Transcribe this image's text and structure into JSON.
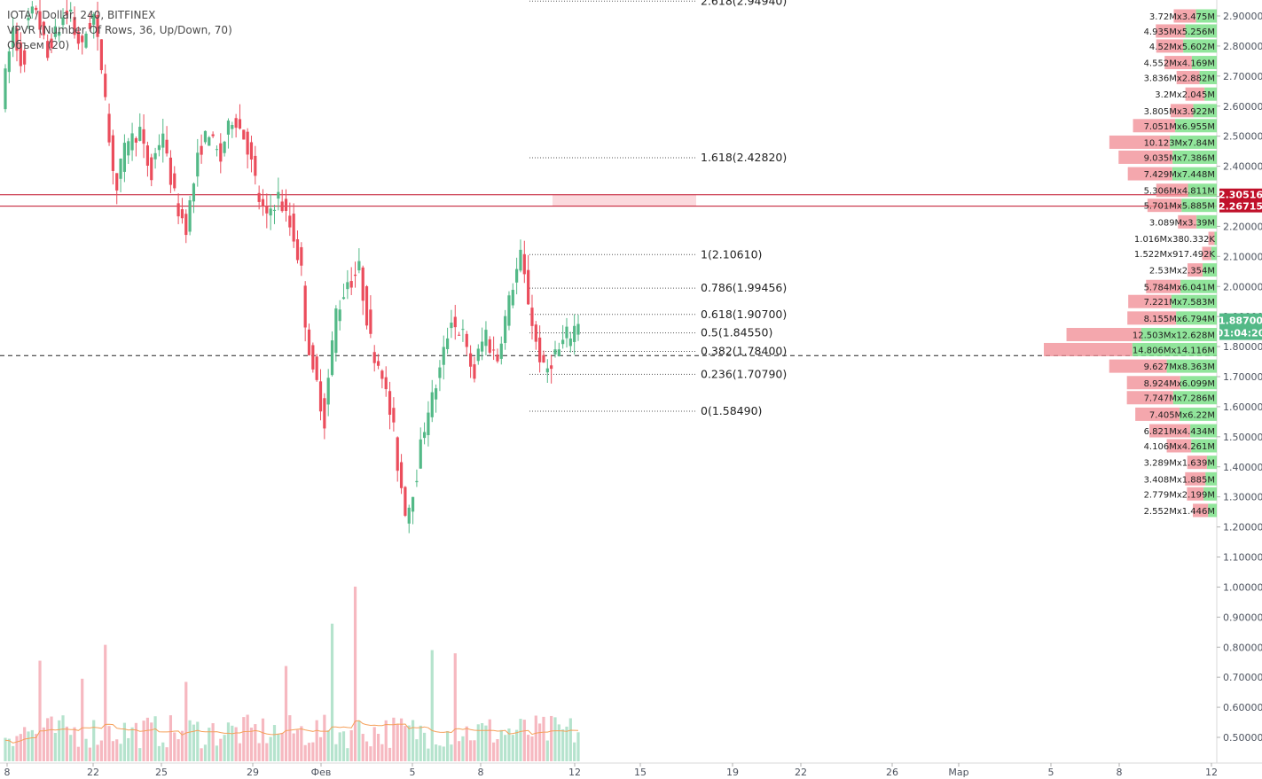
{
  "legend": {
    "symbol_line": "IOTA / Dollar, 240, BITFINEX",
    "vpvr_line": "VPVR (Number Of Rows, 36, Up/Down, 70)",
    "volume_line": "Объем (20)"
  },
  "colors": {
    "up": "#53b987",
    "down": "#eb4d5c",
    "up_volume": "#b5e3cd",
    "down_volume": "#f6b8c0",
    "volume_ma": "#f5a05a",
    "vp_up": "#7ee08a",
    "vp_down": "#f08a92",
    "level_line": "#c0102a"
  },
  "chart_data": {
    "type": "candlestick",
    "y_axis": {
      "ticks": [
        "2.90000",
        "2.80000",
        "2.70000",
        "2.60000",
        "2.50000",
        "2.40000",
        "2.30000",
        "2.20000",
        "2.10000",
        "2.00000",
        "1.90000",
        "1.80000",
        "1.70000",
        "1.60000",
        "1.50000",
        "1.40000",
        "1.30000",
        "1.20000",
        "1.10000",
        "1.00000",
        "0.90000",
        "0.80000",
        "0.70000",
        "0.60000",
        "0.50000"
      ],
      "range": [
        0.45,
        2.95
      ]
    },
    "x_axis": {
      "ticks": [
        "8",
        "22",
        "25",
        "29",
        "Фев",
        "5",
        "8",
        "12",
        "15",
        "19",
        "22",
        "26",
        "Мар",
        "5",
        "8",
        "12"
      ]
    },
    "fibonacci": [
      {
        "label": "2.618(2.94940)",
        "value": 2.9494
      },
      {
        "label": "1.618(2.42820)",
        "value": 2.4282
      },
      {
        "label": "1(2.10610)",
        "value": 2.1061
      },
      {
        "label": "0.786(1.99456)",
        "value": 1.99456
      },
      {
        "label": "0.618(1.90700)",
        "value": 1.907
      },
      {
        "label": "0.5(1.84550)",
        "value": 1.8455
      },
      {
        "label": "0.382(1.78400)",
        "value": 1.784
      },
      {
        "label": "0.236(1.70790)",
        "value": 1.7079
      },
      {
        "label": "0(1.58490)",
        "value": 1.5849
      }
    ],
    "horizontal_levels": [
      {
        "value": 2.30516,
        "label": "2.30516"
      },
      {
        "value": 2.26715,
        "label": "2.26715"
      }
    ],
    "last_price": {
      "value": 1.887,
      "label": "1.88700",
      "countdown": "01:04:20"
    },
    "dashed_level": 1.77,
    "volume_profile": [
      {
        "price": 2.9,
        "label": "3.72Mx3.475M",
        "up": 3.475,
        "down": 3.72
      },
      {
        "price": 2.85,
        "label": "4.935Mx5.256M",
        "up": 5.256,
        "down": 4.935
      },
      {
        "price": 2.8,
        "label": "4.52Mx5.602M",
        "up": 5.602,
        "down": 4.52
      },
      {
        "price": 2.745,
        "label": "4.552Mx4.169M",
        "up": 4.169,
        "down": 4.552
      },
      {
        "price": 2.695,
        "label": "3.836Mx2.882M",
        "up": 2.882,
        "down": 3.836
      },
      {
        "price": 2.64,
        "label": "3.2Mx2.045M",
        "up": 2.045,
        "down": 3.2
      },
      {
        "price": 2.585,
        "label": "3.805Mx3.922M",
        "up": 3.922,
        "down": 3.805
      },
      {
        "price": 2.535,
        "label": "7.051Mx6.955M",
        "up": 6.955,
        "down": 7.051
      },
      {
        "price": 2.48,
        "label": "10.123Mx7.84M",
        "up": 7.84,
        "down": 10.123
      },
      {
        "price": 2.43,
        "label": "9.035Mx7.386M",
        "up": 7.386,
        "down": 9.035
      },
      {
        "price": 2.375,
        "label": "7.429Mx7.448M",
        "up": 7.448,
        "down": 7.429
      },
      {
        "price": 2.32,
        "label": "5.306Mx4.811M",
        "up": 4.811,
        "down": 5.306
      },
      {
        "price": 2.27,
        "label": "5.701Mx5.885M",
        "up": 5.885,
        "down": 5.701
      },
      {
        "price": 2.215,
        "label": "3.089Mx3.39M",
        "up": 3.39,
        "down": 3.089
      },
      {
        "price": 2.16,
        "label": "1.016Mx380.332K",
        "up": 0.38,
        "down": 1.016
      },
      {
        "price": 2.11,
        "label": "1.522Mx917.492K",
        "up": 0.917,
        "down": 1.522
      },
      {
        "price": 2.055,
        "label": "2.53Mx2.354M",
        "up": 2.354,
        "down": 2.53
      },
      {
        "price": 2.0,
        "label": "5.784Mx6.041M",
        "up": 6.041,
        "down": 5.784
      },
      {
        "price": 1.95,
        "label": "7.221Mx7.583M",
        "up": 7.583,
        "down": 7.221
      },
      {
        "price": 1.895,
        "label": "8.155Mx6.794M",
        "up": 6.794,
        "down": 8.155
      },
      {
        "price": 1.84,
        "label": "12.503Mx12.628M",
        "up": 12.628,
        "down": 12.503
      },
      {
        "price": 1.79,
        "label": "14.806Mx14.116M",
        "up": 14.116,
        "down": 14.806
      },
      {
        "price": 1.735,
        "label": "9.627Mx8.363M",
        "up": 8.363,
        "down": 9.627
      },
      {
        "price": 1.68,
        "label": "8.924Mx6.099M",
        "up": 6.099,
        "down": 8.924
      },
      {
        "price": 1.63,
        "label": "7.747Mx7.286M",
        "up": 7.286,
        "down": 7.747
      },
      {
        "price": 1.575,
        "label": "7.405Mx6.22M",
        "up": 6.22,
        "down": 7.405
      },
      {
        "price": 1.52,
        "label": "6.821Mx4.434M",
        "up": 4.434,
        "down": 6.821
      },
      {
        "price": 1.47,
        "label": "4.106Mx4.261M",
        "up": 4.261,
        "down": 4.106
      },
      {
        "price": 1.415,
        "label": "3.289Mx1.639M",
        "up": 1.639,
        "down": 3.289
      },
      {
        "price": 1.36,
        "label": "3.408Mx1.885M",
        "up": 1.885,
        "down": 3.408
      },
      {
        "price": 1.31,
        "label": "2.779Mx2.199M",
        "up": 2.199,
        "down": 2.779
      },
      {
        "price": 1.255,
        "label": "2.552Mx1.446M",
        "up": 1.446,
        "down": 2.552
      }
    ],
    "candle_waypoints": [
      [
        2.62,
        2.86
      ],
      [
        2.84,
        2.72
      ],
      [
        2.86,
        2.93
      ],
      [
        2.92,
        2.76
      ],
      [
        2.8,
        2.86
      ],
      [
        2.88,
        2.92
      ],
      [
        2.87,
        2.79
      ],
      [
        2.82,
        2.9
      ],
      [
        2.88,
        2.66
      ],
      [
        2.56,
        2.32
      ],
      [
        2.35,
        2.5
      ],
      [
        2.48,
        2.52
      ],
      [
        2.5,
        2.36
      ],
      [
        2.4,
        2.52
      ],
      [
        2.48,
        2.3
      ],
      [
        2.28,
        2.2
      ],
      [
        2.2,
        2.42
      ],
      [
        2.44,
        2.52
      ],
      [
        2.5,
        2.42
      ],
      [
        2.45,
        2.56
      ],
      [
        2.58,
        2.5
      ],
      [
        2.52,
        2.35
      ],
      [
        2.32,
        2.22
      ],
      [
        2.24,
        2.3
      ],
      [
        2.3,
        2.2
      ],
      [
        2.22,
        2.05
      ],
      [
        1.98,
        1.7
      ],
      [
        1.74,
        1.55
      ],
      [
        1.58,
        1.92
      ],
      [
        1.9,
        2.02
      ],
      [
        2.0,
        2.06
      ],
      [
        2.05,
        1.82
      ],
      [
        1.8,
        1.72
      ],
      [
        1.7,
        1.52
      ],
      [
        1.48,
        1.26
      ],
      [
        1.22,
        1.38
      ],
      [
        1.4,
        1.6
      ],
      [
        1.58,
        1.72
      ],
      [
        1.72,
        1.9
      ],
      [
        1.88,
        1.84
      ],
      [
        1.82,
        1.7
      ],
      [
        1.74,
        1.85
      ],
      [
        1.82,
        1.76
      ],
      [
        1.78,
        1.95
      ],
      [
        1.96,
        2.1
      ],
      [
        2.1,
        1.88
      ],
      [
        1.86,
        1.72
      ],
      [
        1.7,
        1.78
      ],
      [
        1.76,
        1.84
      ],
      [
        1.82,
        1.887
      ]
    ],
    "volume_axis_max": 1.8,
    "volume_spikes": [
      [
        43,
        0.95
      ],
      [
        93,
        0.78
      ],
      [
        120,
        1.1
      ],
      [
        211,
        0.75
      ],
      [
        324,
        0.9
      ],
      [
        376,
        1.3
      ],
      [
        400,
        1.65
      ],
      [
        488,
        1.05
      ],
      [
        512,
        1.02
      ]
    ]
  }
}
